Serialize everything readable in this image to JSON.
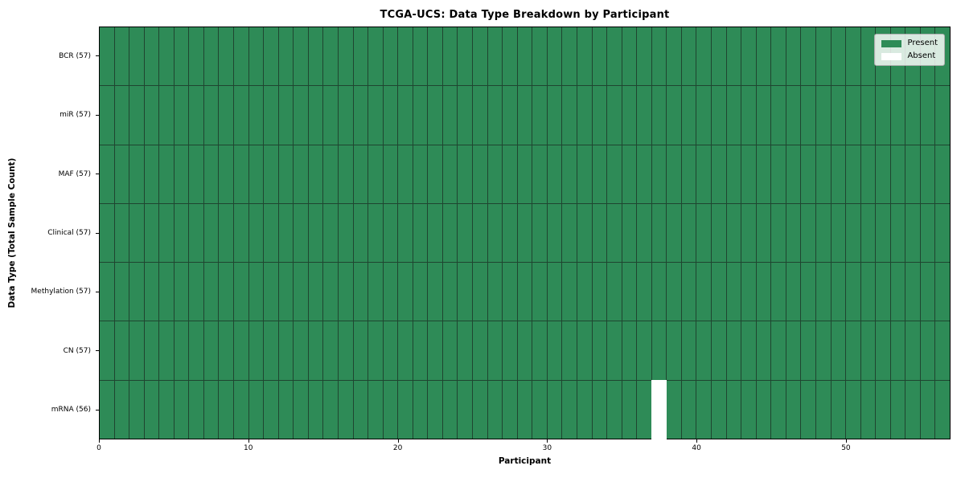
{
  "chart_data": {
    "type": "heatmap",
    "title": "TCGA-UCS: Data Type Breakdown by Participant",
    "xlabel": "Participant",
    "ylabel": "Data Type (Total Sample Count)",
    "n_participants": 57,
    "x_ticks": [
      0,
      10,
      20,
      30,
      40,
      50
    ],
    "rows": [
      {
        "label": "BCR (57)",
        "data_type": "BCR",
        "present_count": 57,
        "absent_participants": []
      },
      {
        "label": "miR (57)",
        "data_type": "miR",
        "present_count": 57,
        "absent_participants": []
      },
      {
        "label": "MAF (57)",
        "data_type": "MAF",
        "present_count": 57,
        "absent_participants": []
      },
      {
        "label": "Clinical (57)",
        "data_type": "Clinical",
        "present_count": 57,
        "absent_participants": []
      },
      {
        "label": "Methylation (57)",
        "data_type": "Methylation",
        "present_count": 57,
        "absent_participants": []
      },
      {
        "label": "CN (57)",
        "data_type": "CN",
        "present_count": 57,
        "absent_participants": []
      },
      {
        "label": "mRNA (56)",
        "data_type": "mRNA",
        "present_count": 56,
        "absent_participants": [
          37
        ]
      }
    ],
    "legend": [
      {
        "label": "Present",
        "color": "#2e8b57"
      },
      {
        "label": "Absent",
        "color": "#ffffff"
      }
    ],
    "colors": {
      "present": "#2e8b57",
      "absent": "#ffffff",
      "grid_line": "#1f4530"
    },
    "legend_position": "upper right",
    "grid": true
  }
}
